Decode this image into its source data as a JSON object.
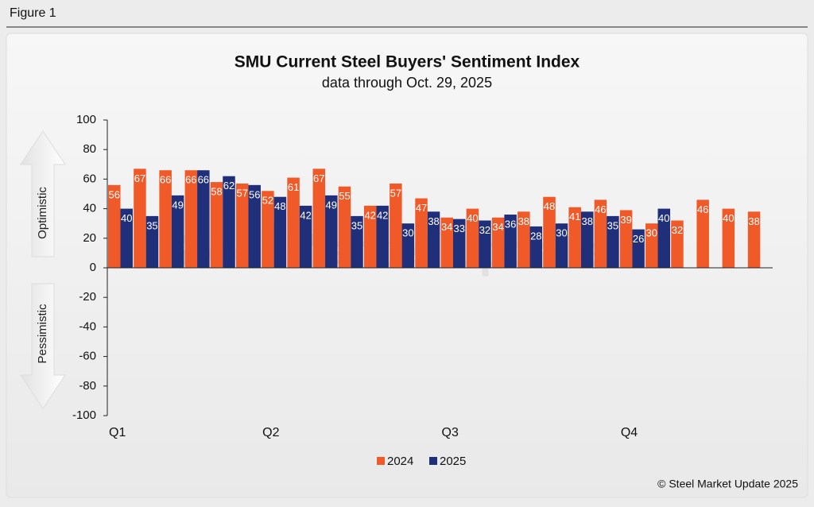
{
  "figure_label": "Figure 1",
  "copyright": "© Steel Market Update 2025",
  "chart_data": {
    "type": "bar",
    "title": "SMU Current Steel Buyers' Sentiment Index",
    "subtitle": "data through Oct. 29, 2025",
    "watermark": "Steel Market Update",
    "upper_label": "Optimistic",
    "lower_label": "Pessimistic",
    "categories": [
      "Q1",
      null,
      null,
      null,
      null,
      null,
      "Q2",
      null,
      null,
      null,
      null,
      null,
      null,
      "Q3",
      null,
      null,
      null,
      null,
      null,
      null,
      "Q4",
      null,
      null,
      null,
      null,
      null
    ],
    "series": [
      {
        "name": "2024",
        "color": "#f05a28",
        "values": [
          56,
          67,
          66,
          66,
          58,
          57,
          52,
          61,
          67,
          55,
          42,
          57,
          47,
          34,
          40,
          34,
          38,
          48,
          41,
          46,
          39,
          30,
          32,
          46,
          40,
          38
        ]
      },
      {
        "name": "2025",
        "color": "#1f2f7a",
        "values": [
          40,
          35,
          49,
          66,
          62,
          56,
          48,
          42,
          49,
          35,
          42,
          30,
          38,
          33,
          32,
          36,
          28,
          30,
          38,
          35,
          26,
          40,
          null,
          null,
          null,
          null
        ]
      }
    ],
    "ylim": [
      -100,
      100
    ],
    "yticks": [
      -100,
      -80,
      -60,
      -40,
      -20,
      0,
      20,
      40,
      60,
      80,
      100
    ],
    "legend": "bottom"
  }
}
